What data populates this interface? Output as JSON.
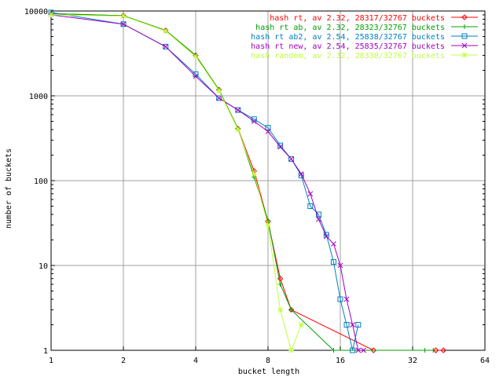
{
  "chart_data": {
    "type": "line",
    "xlabel": "bucket length",
    "ylabel": "number of buckets",
    "x_scale": "log2",
    "y_scale": "log10",
    "xlim": [
      1,
      64
    ],
    "ylim": [
      1,
      10000
    ],
    "x_ticks": [
      1,
      2,
      4,
      8,
      16,
      32,
      64
    ],
    "y_ticks": [
      1,
      10,
      100,
      1000,
      10000
    ],
    "x_tick_labels": [
      "1",
      "2",
      "4",
      "8",
      "16",
      "32",
      "64"
    ],
    "y_tick_labels": [
      "1",
      "10",
      "100",
      "1000",
      "10000"
    ],
    "grid": true,
    "legend_position": "top-right",
    "series": [
      {
        "name": "hash rt, av 2.32, 28317/32767 buckets",
        "color": "#ff0000",
        "marker": "diamond",
        "x": [
          1,
          2,
          3,
          4,
          5,
          6,
          7,
          8,
          9,
          10,
          22,
          40,
          43
        ],
        "y": [
          9300,
          8800,
          5900,
          3000,
          1180,
          410,
          130,
          33,
          7,
          3,
          1,
          1,
          1
        ]
      },
      {
        "name": "hash rt ab, av 2.32, 28323/32767 buckets",
        "color": "#00a000",
        "marker": "plus",
        "x": [
          1,
          2,
          3,
          4,
          5,
          6,
          7,
          8,
          9,
          10,
          15,
          36,
          39
        ],
        "y": [
          9300,
          8800,
          5900,
          3000,
          1180,
          410,
          110,
          34,
          6,
          3,
          1,
          1,
          1
        ]
      },
      {
        "name": "hash rt ab2, av 2.54, 25838/32767 buckets",
        "color": "#0080c0",
        "marker": "square",
        "x": [
          1,
          2,
          3,
          4,
          5,
          6,
          7,
          8,
          9,
          10,
          11,
          12,
          13,
          14,
          15,
          16,
          17,
          18,
          19
        ],
        "y": [
          9600,
          7000,
          3800,
          1800,
          940,
          680,
          530,
          420,
          260,
          180,
          115,
          50,
          40,
          23,
          11,
          4,
          2,
          1,
          2
        ]
      },
      {
        "name": "hash rt new, av 2.54, 25835/32767 buckets",
        "color": "#a000c0",
        "marker": "cross",
        "x": [
          1,
          2,
          3,
          4,
          5,
          6,
          7,
          8,
          9,
          10,
          11,
          12,
          13,
          14,
          15,
          16,
          17,
          18,
          19,
          20
        ],
        "y": [
          9000,
          7000,
          3800,
          1700,
          940,
          680,
          500,
          380,
          250,
          180,
          120,
          70,
          35,
          22,
          18,
          10,
          4,
          2,
          1,
          1
        ]
      },
      {
        "name": "hash random, av 2.32, 28338/32767 buckets",
        "color": "#c0ff40",
        "marker": "star",
        "x": [
          1,
          2,
          3,
          4,
          5,
          6,
          7,
          8,
          9,
          10,
          11
        ],
        "y": [
          9000,
          8700,
          5800,
          2900,
          1150,
          400,
          120,
          30,
          3,
          1,
          2
        ]
      }
    ]
  }
}
